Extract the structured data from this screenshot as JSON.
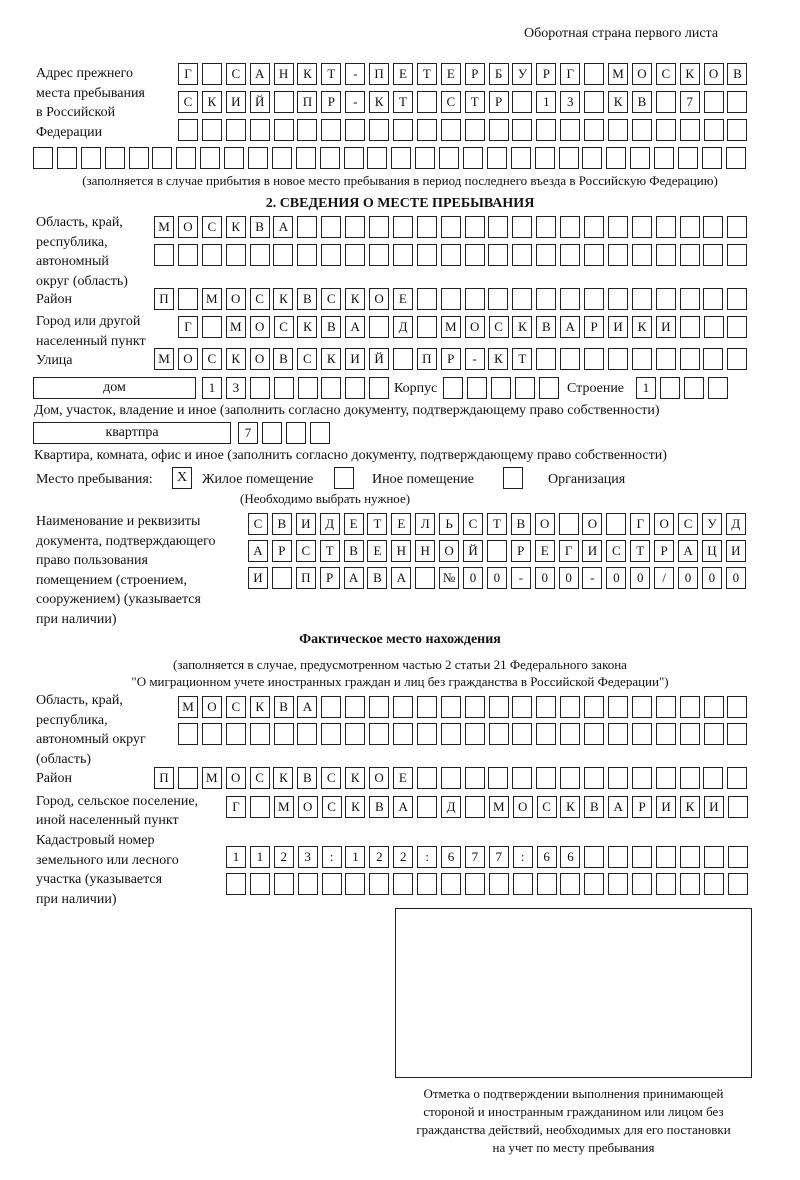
{
  "header": "Оборотная страна первого листа",
  "prev_address": {
    "label": [
      "Адрес прежнего",
      "места пребывания",
      "в Российской",
      "Федерации"
    ],
    "rows": [
      [
        "Г",
        "",
        "С",
        "А",
        "Н",
        "К",
        "Т",
        "-",
        "П",
        "Е",
        "Т",
        "Е",
        "Р",
        "Б",
        "У",
        "Р",
        "Г",
        "",
        "М",
        "О",
        "С",
        "К",
        "О",
        "В"
      ],
      [
        "С",
        "К",
        "И",
        "Й",
        "",
        "П",
        "Р",
        "-",
        "К",
        "Т",
        "",
        "С",
        "Т",
        "Р",
        "",
        "1",
        "3",
        "",
        "К",
        "В",
        "",
        "7",
        "",
        ""
      ],
      [
        "",
        "",
        "",
        "",
        "",
        "",
        "",
        "",
        "",
        "",
        "",
        "",
        "",
        "",
        "",
        "",
        "",
        "",
        "",
        "",
        "",
        "",
        "",
        ""
      ],
      [
        "",
        "",
        "",
        "",
        "",
        "",
        "",
        "",
        "",
        "",
        "",
        "",
        "",
        "",
        "",
        "",
        "",
        "",
        "",
        "",
        "",
        "",
        "",
        "",
        "",
        "",
        "",
        "",
        "",
        ""
      ]
    ],
    "note": "(заполняется в случае прибытия в новое место пребывания в период последнего въезда в Российскую Федерацию)"
  },
  "section2": {
    "title": "2. СВЕДЕНИЯ О МЕСТЕ ПРЕБЫВАНИЯ",
    "region_label": [
      "Область, край,",
      "республика,",
      "автономный",
      "округ (область)"
    ],
    "region_rows": [
      [
        "М",
        "О",
        "С",
        "К",
        "В",
        "А",
        "",
        "",
        "",
        "",
        "",
        "",
        "",
        "",
        "",
        "",
        "",
        "",
        "",
        "",
        "",
        "",
        "",
        "",
        ""
      ],
      [
        "",
        "",
        "",
        "",
        "",
        "",
        "",
        "",
        "",
        "",
        "",
        "",
        "",
        "",
        "",
        "",
        "",
        "",
        "",
        "",
        "",
        "",
        "",
        "",
        ""
      ]
    ],
    "district_label": "Район",
    "district_row": [
      "П",
      "",
      "М",
      "О",
      "С",
      "К",
      "В",
      "С",
      "К",
      "О",
      "Е",
      "",
      "",
      "",
      "",
      "",
      "",
      "",
      "",
      "",
      "",
      "",
      "",
      "",
      ""
    ],
    "city_label": [
      "Город или другой",
      "населенный пункт"
    ],
    "city_row": [
      "Г",
      "",
      "М",
      "О",
      "С",
      "К",
      "В",
      "А",
      "",
      "Д",
      "",
      "М",
      "О",
      "С",
      "К",
      "В",
      "А",
      "Р",
      "И",
      "К",
      "И",
      "",
      "",
      ""
    ],
    "street_label": "Улица",
    "street_row": [
      "М",
      "О",
      "С",
      "К",
      "О",
      "В",
      "С",
      "К",
      "И",
      "Й",
      "",
      "П",
      "Р",
      "-",
      "К",
      "Т",
      "",
      "",
      "",
      "",
      "",
      "",
      "",
      "",
      ""
    ],
    "house_type": "дом",
    "house_cells": [
      "1",
      "3",
      "",
      "",
      "",
      "",
      "",
      ""
    ],
    "korpus_label": "Корпус",
    "korpus_cells": [
      "",
      "",
      "",
      "",
      ""
    ],
    "building_label": "Строение",
    "building_cells": [
      "1",
      "",
      "",
      ""
    ],
    "house_note": "Дом, участок, владение и иное (заполнить согласно документу, подтверждающему право собственности)",
    "apt_type": "квартпра",
    "apt_cells": [
      "7",
      "",
      "",
      ""
    ],
    "apt_note": "Квартира, комната, офис и иное (заполнить согласно документу, подтверждающему право собственности)",
    "stay_label": "Место пребывания:",
    "stay_options": [
      {
        "label": "Жилое помещение",
        "mark": "X"
      },
      {
        "label": "Иное помещение",
        "mark": ""
      },
      {
        "label": "Организация",
        "mark": ""
      }
    ],
    "stay_note": "(Необходимо выбрать нужное)",
    "doc_label": [
      "Наименование и реквизиты",
      "документа, подтверждающего",
      "право пользования",
      "помещением (строением,",
      "сооружением) (указывается",
      "при наличии)"
    ],
    "doc_rows": [
      [
        "С",
        "В",
        "И",
        "Д",
        "Е",
        "Т",
        "Е",
        "Л",
        "Ь",
        "С",
        "Т",
        "В",
        "О",
        "",
        "О",
        "",
        "Г",
        "О",
        "С",
        "У",
        "Д"
      ],
      [
        "А",
        "Р",
        "С",
        "Т",
        "В",
        "Е",
        "Н",
        "Н",
        "О",
        "Й",
        "",
        "Р",
        "Е",
        "Г",
        "И",
        "С",
        "Т",
        "Р",
        "А",
        "Ц",
        "И"
      ],
      [
        "И",
        "",
        "П",
        "Р",
        "А",
        "В",
        "А",
        "",
        "№",
        "0",
        "0",
        "-",
        "0",
        "0",
        "-",
        "0",
        "0",
        "/",
        "0",
        "0",
        "0"
      ]
    ]
  },
  "actual": {
    "title": "Фактическое место нахождения",
    "note": [
      "(заполняется в случае, предусмотренном частью 2 статьи 21 Федерального закона",
      "\"О миграционном учете иностранных граждан и лиц без гражданства в Российской Федерации\")"
    ],
    "region_label": [
      "Область, край,",
      "республика,",
      "автономный округ",
      "(область)"
    ],
    "region_rows": [
      [
        "М",
        "О",
        "С",
        "К",
        "В",
        "А",
        "",
        "",
        "",
        "",
        "",
        "",
        "",
        "",
        "",
        "",
        "",
        "",
        "",
        "",
        "",
        "",
        "",
        ""
      ],
      [
        "",
        "",
        "",
        "",
        "",
        "",
        "",
        "",
        "",
        "",
        "",
        "",
        "",
        "",
        "",
        "",
        "",
        "",
        "",
        "",
        "",
        "",
        "",
        ""
      ]
    ],
    "district_label": "Район",
    "district_row": [
      "П",
      "",
      "М",
      "О",
      "С",
      "К",
      "В",
      "С",
      "К",
      "О",
      "Е",
      "",
      "",
      "",
      "",
      "",
      "",
      "",
      "",
      "",
      "",
      "",
      "",
      "",
      ""
    ],
    "city_label": [
      "Город, сельское поселение,",
      "иной населенный пункт"
    ],
    "city_row": [
      "Г",
      "",
      "М",
      "О",
      "С",
      "К",
      "В",
      "А",
      "",
      "Д",
      "",
      "М",
      "О",
      "С",
      "К",
      "В",
      "А",
      "Р",
      "И",
      "К",
      "И",
      ""
    ],
    "cadastre_label": [
      "Кадастровый номер",
      "земельного или лесного",
      "участка (указывается",
      "при наличии)"
    ],
    "cadastre_rows": [
      [
        "1",
        "1",
        "2",
        "3",
        ":",
        "1",
        "2",
        "2",
        ":",
        "6",
        "7",
        "7",
        ":",
        "6",
        "6",
        "",
        "",
        "",
        "",
        "",
        "",
        ""
      ],
      [
        "",
        "",
        "",
        "",
        "",
        "",
        "",
        "",
        "",
        "",
        "",
        "",
        "",
        "",
        "",
        "",
        "",
        "",
        "",
        "",
        "",
        ""
      ]
    ]
  },
  "stamp_caption": [
    "Отметка о подтверждении выполнения принимающей",
    "стороной и иностранным гражданином или лицом без",
    "гражданства действий, необходимых для его постановки",
    "на учет по месту пребывания"
  ]
}
